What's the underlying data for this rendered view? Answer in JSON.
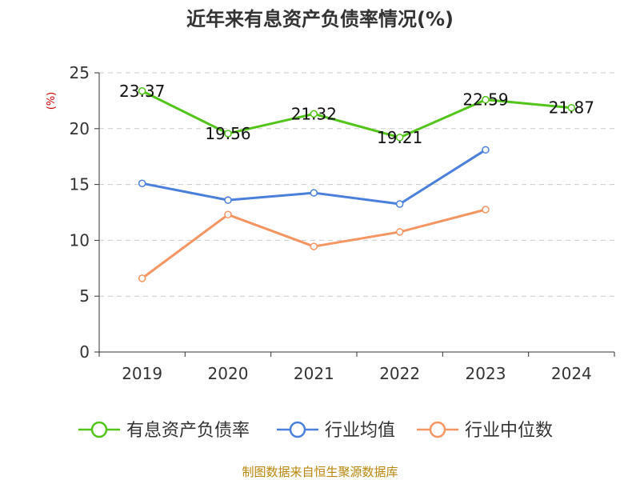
{
  "chart_data": {
    "type": "line",
    "title": "近年来有息资产负债率情况(%)",
    "ylabel": "(%)",
    "categories": [
      "2019",
      "2020",
      "2021",
      "2022",
      "2023",
      "2024"
    ],
    "ylim": [
      0,
      25
    ],
    "yticks": [
      0,
      5,
      10,
      15,
      20,
      25
    ],
    "grid": "horizontal dashed",
    "legend_position": "bottom",
    "series": [
      {
        "name": "有息资产负债率",
        "color": "#52c41a",
        "values": [
          23.37,
          19.56,
          21.32,
          19.21,
          22.59,
          21.87
        ],
        "labels": [
          "23.37",
          "19.56",
          "21.32",
          "19.21",
          "22.59",
          "21.87"
        ]
      },
      {
        "name": "行业均值",
        "color": "#4a7fdb",
        "values": [
          15.1,
          13.6,
          14.25,
          13.25,
          18.1,
          null
        ]
      },
      {
        "name": "行业中位数",
        "color": "#f59562",
        "values": [
          6.6,
          12.3,
          9.45,
          10.75,
          12.75,
          null
        ]
      }
    ]
  },
  "source_text": "制图数据来自恒生聚源数据库"
}
